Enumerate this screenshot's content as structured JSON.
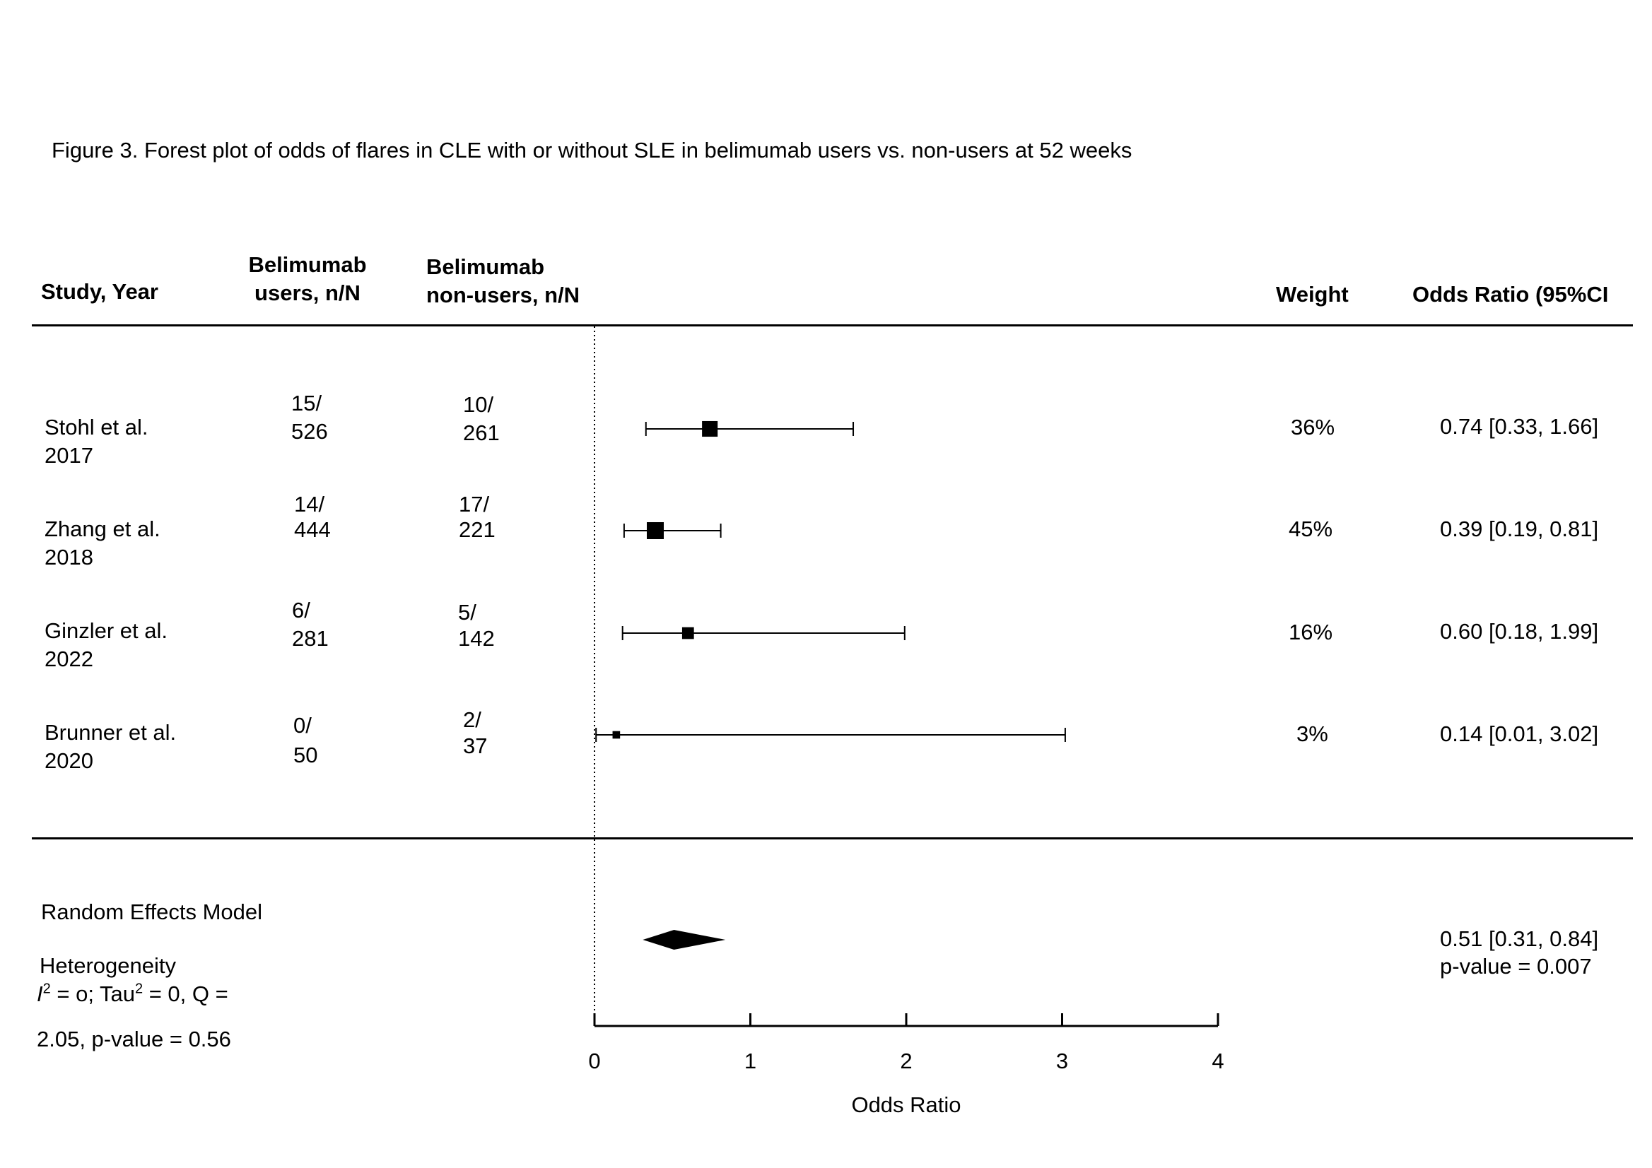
{
  "title": "Figure 3. Forest plot of odds of flares in CLE with or without SLE in belimumab users vs. non-users at 52 weeks",
  "headers": {
    "study": "Study, Year",
    "users_line1": "Belimumab",
    "users_line2": "users, n/N",
    "nonusers_line1": "Belimumab",
    "nonusers_line2": "non-users, n/N",
    "weight": "Weight",
    "or": "Odds Ratio (95%CI"
  },
  "studies": [
    {
      "name": "Stohl et al.",
      "year": "2017",
      "users_n": "15/",
      "users_N": "526",
      "nonusers_n": "10/",
      "nonusers_N": "261",
      "weight": "36%",
      "ci_text": "0.74 [0.33, 1.66]"
    },
    {
      "name": "Zhang et al.",
      "year": "2018",
      "users_n": "14/",
      "users_N": "444",
      "nonusers_n": "17/",
      "nonusers_N": "221",
      "weight": "45%",
      "ci_text": "0.39 [0.19, 0.81]"
    },
    {
      "name": "Ginzler et al.",
      "year": "2022",
      "users_n": "6/",
      "users_N": "281",
      "nonusers_n": "5/",
      "nonusers_N": "142",
      "weight": "16%",
      "ci_text": "0.60 [0.18, 1.99]"
    },
    {
      "name": "Brunner et al.",
      "year": "2020",
      "users_n": "0/",
      "users_N": "50",
      "nonusers_n": "2/",
      "nonusers_N": "37",
      "weight": "3%",
      "ci_text": "0.14 [0.01, 3.02]"
    }
  ],
  "summary": {
    "label": "Random Effects Model",
    "ci_text": "0.51 [0.31, 0.84]",
    "pvalue_text": "p-value = 0.007",
    "heterogeneity_label": "Heterogeneity",
    "het_i2_symbol": "I",
    "het_i2_sup": "2",
    "het_rest_a": " = o; Tau",
    "het_tau_sup": "2",
    "het_rest_b": " = 0, Q =",
    "het_line2": "2.05, p-value = 0.56"
  },
  "chart_data": {
    "type": "forest",
    "xlabel": "Odds Ratio",
    "xlim": [
      0,
      4
    ],
    "xticks": [
      0,
      1,
      2,
      3,
      4
    ],
    "reference_line": 0,
    "studies": [
      {
        "label": "Stohl et al. 2017",
        "or": 0.74,
        "lower": 0.33,
        "upper": 1.66,
        "weight": 36
      },
      {
        "label": "Zhang et al. 2018",
        "or": 0.39,
        "lower": 0.19,
        "upper": 0.81,
        "weight": 45
      },
      {
        "label": "Ginzler et al. 2022",
        "or": 0.6,
        "lower": 0.18,
        "upper": 1.99,
        "weight": 16
      },
      {
        "label": "Brunner et al. 2020",
        "or": 0.14,
        "lower": 0.01,
        "upper": 3.02,
        "weight": 3
      }
    ],
    "pooled": {
      "label": "Random Effects Model",
      "or": 0.51,
      "lower": 0.31,
      "upper": 0.84
    }
  }
}
